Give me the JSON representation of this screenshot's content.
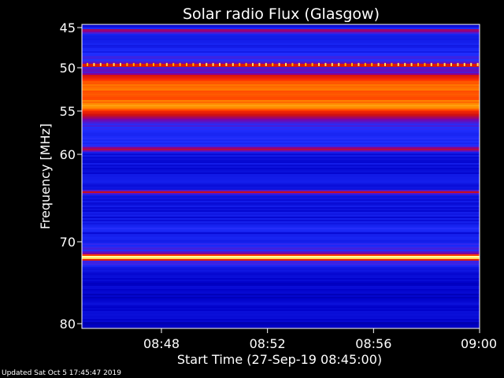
{
  "chart_data": {
    "type": "heatmap",
    "title": "Solar radio Flux (Glasgow)",
    "xlabel": "Start Time (27-Sep-19 08:45:00)",
    "ylabel": "Frequency [MHz]",
    "x_range": [
      "08:45",
      "09:00"
    ],
    "x_ticks": [
      "08:48",
      "08:52",
      "08:56",
      "09:00"
    ],
    "x_tick_minutes": [
      48,
      52,
      56,
      60
    ],
    "y_range": [
      80,
      45
    ],
    "y_ticks": [
      45,
      50,
      55,
      60,
      70,
      80
    ],
    "y_scale": "nonlinear (compressed toward lower frequencies)",
    "colormap": [
      "#000060",
      "#0000c8",
      "#2030ff",
      "#8000a0",
      "#d01010",
      "#ff3000",
      "#ff9000",
      "#ffff80",
      "#ffffff"
    ],
    "intensity_profile": [
      {
        "mhz": 45.0,
        "level": 0.15
      },
      {
        "mhz": 45.3,
        "level": 0.45
      },
      {
        "mhz": 46.0,
        "level": 0.18
      },
      {
        "mhz": 48.0,
        "level": 0.22
      },
      {
        "mhz": 49.4,
        "level": 0.3
      },
      {
        "mhz": 49.7,
        "level": 0.62
      },
      {
        "mhz": 50.0,
        "level": 0.3
      },
      {
        "mhz": 50.6,
        "level": 0.32
      },
      {
        "mhz": 51.0,
        "level": 0.55
      },
      {
        "mhz": 51.6,
        "level": 0.68
      },
      {
        "mhz": 52.5,
        "level": 0.7
      },
      {
        "mhz": 53.5,
        "level": 0.66
      },
      {
        "mhz": 54.4,
        "level": 0.78
      },
      {
        "mhz": 55.0,
        "level": 0.62
      },
      {
        "mhz": 55.7,
        "level": 0.45
      },
      {
        "mhz": 56.3,
        "level": 0.3
      },
      {
        "mhz": 57.5,
        "level": 0.22
      },
      {
        "mhz": 59.0,
        "level": 0.24
      },
      {
        "mhz": 59.4,
        "level": 0.5
      },
      {
        "mhz": 59.8,
        "level": 0.18
      },
      {
        "mhz": 62.0,
        "level": 0.16
      },
      {
        "mhz": 64.0,
        "level": 0.2
      },
      {
        "mhz": 64.3,
        "level": 0.5
      },
      {
        "mhz": 64.7,
        "level": 0.17
      },
      {
        "mhz": 68.0,
        "level": 0.18
      },
      {
        "mhz": 68.5,
        "level": 0.28
      },
      {
        "mhz": 69.0,
        "level": 0.18
      },
      {
        "mhz": 71.4,
        "level": 0.3
      },
      {
        "mhz": 71.9,
        "level": 0.98
      },
      {
        "mhz": 72.4,
        "level": 0.3
      },
      {
        "mhz": 73.5,
        "level": 0.16
      },
      {
        "mhz": 76.0,
        "level": 0.12
      },
      {
        "mhz": 79.0,
        "level": 0.16
      },
      {
        "mhz": 80.0,
        "level": 0.12
      }
    ],
    "legend": "none",
    "grid": false
  },
  "footer": {
    "updated": "Updated Sat Oct  5 17:45:47 2019"
  }
}
